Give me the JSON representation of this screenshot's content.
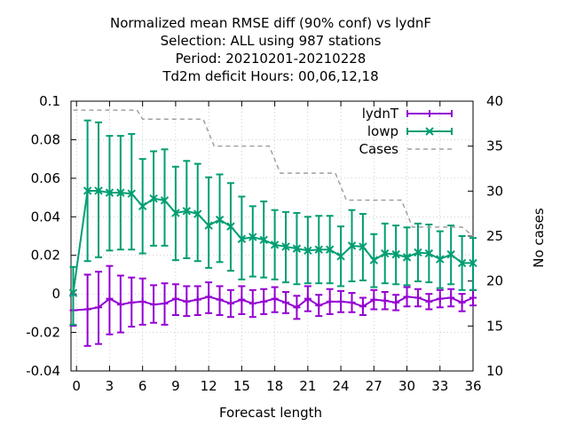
{
  "chart_data": {
    "type": "line",
    "title_lines": [
      "Normalized mean RMSE diff (90% conf) vs lydnF",
      "Selection: ALL using   987 stations",
      "Period: 20210201-20210228",
      "Td2m deficit   Hours:  00,06,12,18"
    ],
    "xlabel": "Forecast length",
    "ylabel": "",
    "y2label": "No cases",
    "xlim": [
      -0.5,
      36
    ],
    "ylim": [
      -0.04,
      0.1
    ],
    "y2lim": [
      10,
      40
    ],
    "xticks": [
      0,
      3,
      6,
      9,
      12,
      15,
      18,
      21,
      24,
      27,
      30,
      33,
      36
    ],
    "yticks": [
      -0.04,
      -0.02,
      0,
      0.02,
      0.04,
      0.06,
      0.08,
      0.1
    ],
    "ytick_labels": [
      "-0.04",
      "-0.02",
      "0",
      "0.02",
      "0.04",
      "0.06",
      "0.08",
      "0.1"
    ],
    "y2ticks": [
      10,
      15,
      20,
      25,
      30,
      35,
      40
    ],
    "legend_position": "top-right",
    "grid": true,
    "series": [
      {
        "name": "lydnT",
        "color": "#9400d3",
        "marker": "plus",
        "axis": "y1",
        "x": [
          -0.3,
          1,
          2,
          3,
          4,
          5,
          6,
          7,
          8,
          9,
          10,
          11,
          12,
          13,
          14,
          15,
          16,
          17,
          18,
          19,
          20,
          21,
          22,
          23,
          24,
          25,
          26,
          27,
          28,
          29,
          30,
          31,
          32,
          33,
          34,
          35,
          36
        ],
        "y": [
          -0.0085,
          -0.008,
          -0.007,
          -0.0025,
          -0.0055,
          -0.0045,
          -0.004,
          -0.0055,
          -0.005,
          -0.0025,
          -0.004,
          -0.003,
          -0.0015,
          -0.003,
          -0.005,
          -0.003,
          -0.005,
          -0.004,
          -0.0025,
          -0.0045,
          -0.007,
          -0.0025,
          -0.006,
          -0.004,
          -0.004,
          -0.0045,
          -0.0065,
          -0.003,
          -0.0035,
          -0.0045,
          -0.0015,
          -0.002,
          -0.004,
          -0.0025,
          -0.002,
          -0.0045,
          -0.002
        ],
        "err_low": [
          -0.0165,
          -0.027,
          -0.026,
          -0.021,
          -0.02,
          -0.017,
          -0.016,
          -0.015,
          -0.016,
          -0.011,
          -0.0115,
          -0.011,
          -0.01,
          -0.011,
          -0.012,
          -0.0105,
          -0.012,
          -0.0105,
          -0.0095,
          -0.01,
          -0.013,
          -0.009,
          -0.0115,
          -0.0105,
          -0.0095,
          -0.0095,
          -0.011,
          -0.008,
          -0.008,
          -0.0085,
          -0.0065,
          -0.0065,
          -0.008,
          -0.007,
          -0.0065,
          -0.009,
          -0.006
        ],
        "err_high": [
          -0.0005,
          0.01,
          0.0115,
          0.0145,
          0.0095,
          0.0085,
          0.008,
          0.0045,
          0.0055,
          0.005,
          0.004,
          0.004,
          0.006,
          0.004,
          0.002,
          0.004,
          0.002,
          0.0025,
          0.0035,
          0.001,
          -0.001,
          0.004,
          -0.0005,
          0.0025,
          0.0015,
          0.0005,
          -0.002,
          0.002,
          0.001,
          -0.0005,
          0.0035,
          0.0025,
          0.0,
          0.002,
          0.0025,
          0.0,
          0.002
        ]
      },
      {
        "name": "lowp",
        "color": "#009e73",
        "marker": "cross",
        "axis": "y1",
        "x": [
          -0.3,
          1,
          2,
          3,
          4,
          5,
          6,
          7,
          8,
          9,
          10,
          11,
          12,
          13,
          14,
          15,
          16,
          17,
          18,
          19,
          20,
          21,
          22,
          23,
          24,
          25,
          26,
          27,
          28,
          29,
          30,
          31,
          32,
          33,
          34,
          35,
          36
        ],
        "y": [
          0.0005,
          0.0535,
          0.0535,
          0.0525,
          0.0525,
          0.052,
          0.0455,
          0.0495,
          0.0485,
          0.042,
          0.043,
          0.0415,
          0.0355,
          0.0385,
          0.035,
          0.0285,
          0.0295,
          0.028,
          0.0255,
          0.0245,
          0.0235,
          0.0225,
          0.023,
          0.023,
          0.0195,
          0.025,
          0.0245,
          0.0175,
          0.021,
          0.0205,
          0.019,
          0.0215,
          0.021,
          0.018,
          0.0205,
          0.016,
          0.016
        ],
        "err_low": [
          -0.016,
          0.017,
          0.019,
          0.0225,
          0.023,
          0.023,
          0.021,
          0.025,
          0.025,
          0.0175,
          0.0185,
          0.017,
          0.0135,
          0.0165,
          0.012,
          0.0075,
          0.009,
          0.0085,
          0.0075,
          0.006,
          0.005,
          0.0055,
          0.0055,
          0.0055,
          0.004,
          0.0065,
          0.007,
          0.0035,
          0.0055,
          0.005,
          0.0045,
          0.0065,
          0.006,
          0.003,
          0.005,
          0.002,
          0.002
        ],
        "err_high": [
          0.014,
          0.09,
          0.089,
          0.082,
          0.082,
          0.083,
          0.07,
          0.074,
          0.075,
          0.066,
          0.069,
          0.0675,
          0.0605,
          0.062,
          0.0575,
          0.0505,
          0.0455,
          0.048,
          0.0435,
          0.0425,
          0.042,
          0.04,
          0.0405,
          0.0405,
          0.035,
          0.0435,
          0.0415,
          0.031,
          0.0365,
          0.0355,
          0.0345,
          0.0365,
          0.036,
          0.0325,
          0.0355,
          0.03,
          0.029
        ]
      },
      {
        "name": "Cases",
        "color": "#a0a0a0",
        "marker": "none",
        "dashed": true,
        "axis": "y2",
        "x": [
          -0.3,
          5.5,
          6,
          11.5,
          12.5,
          17.5,
          18.5,
          23.5,
          24.5,
          29.5,
          30.5,
          35,
          36
        ],
        "y": [
          39,
          39,
          38,
          38,
          35,
          35,
          32,
          32,
          29,
          29,
          26,
          26,
          25
        ]
      }
    ]
  }
}
